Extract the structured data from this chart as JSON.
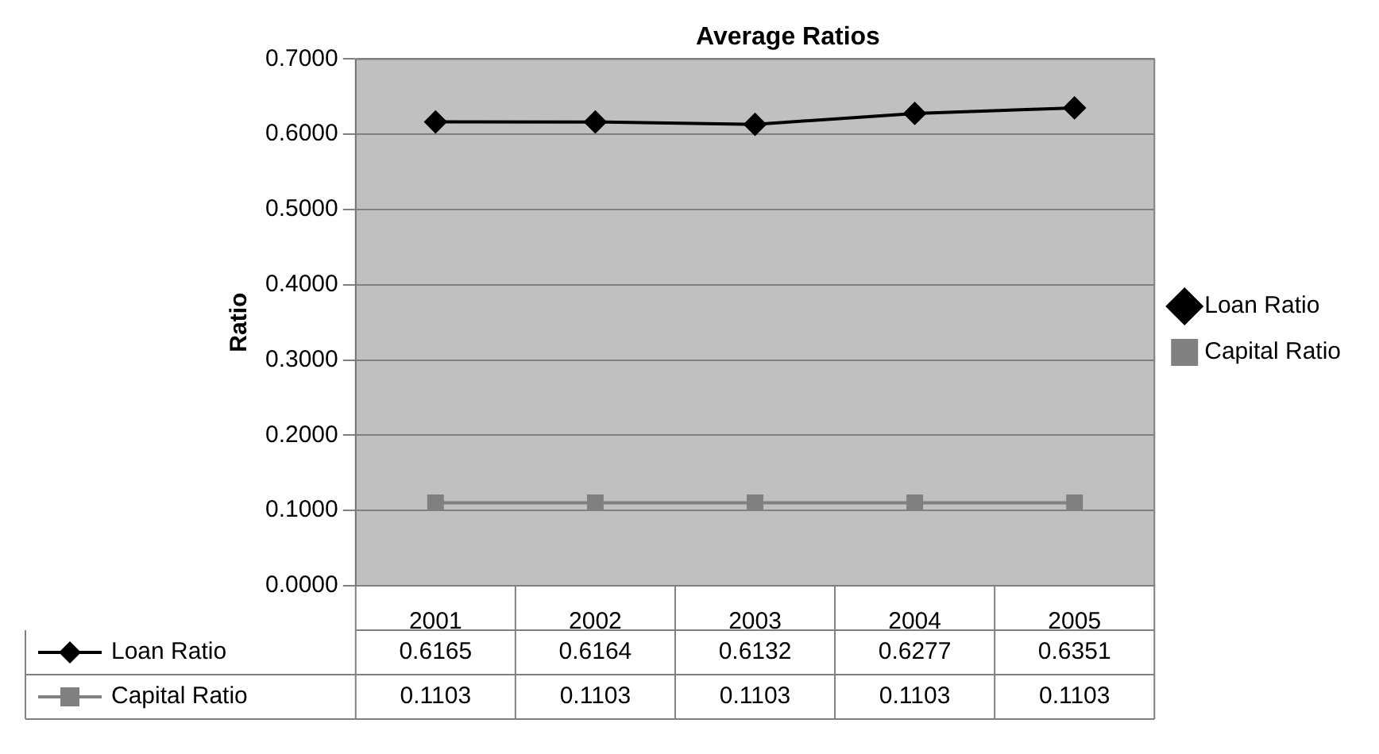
{
  "chart_data": {
    "type": "line",
    "title": "Average Ratios",
    "ylabel": "Ratio",
    "categories": [
      "2001",
      "2002",
      "2003",
      "2004",
      "2005"
    ],
    "series": [
      {
        "name": "Loan Ratio",
        "color": "#000000",
        "marker": "diamond",
        "values": [
          0.6165,
          0.6164,
          0.6132,
          0.6277,
          0.6351
        ]
      },
      {
        "name": "Capital Ratio",
        "color": "#808080",
        "marker": "square",
        "values": [
          0.1103,
          0.1103,
          0.1103,
          0.1103,
          0.1103
        ]
      }
    ],
    "ylim": [
      0,
      0.7
    ],
    "yticks": [
      {
        "value": 0,
        "label": "0.0000"
      },
      {
        "value": 0.1,
        "label": "0.1000"
      },
      {
        "value": 0.2,
        "label": "0.2000"
      },
      {
        "value": 0.3,
        "label": "0.3000"
      },
      {
        "value": 0.4,
        "label": "0.4000"
      },
      {
        "value": 0.5,
        "label": "0.5000"
      },
      {
        "value": 0.6,
        "label": "0.6000"
      },
      {
        "value": 0.7,
        "label": "0.7000"
      }
    ],
    "grid": "y",
    "legend": "right",
    "data_labels": true
  }
}
